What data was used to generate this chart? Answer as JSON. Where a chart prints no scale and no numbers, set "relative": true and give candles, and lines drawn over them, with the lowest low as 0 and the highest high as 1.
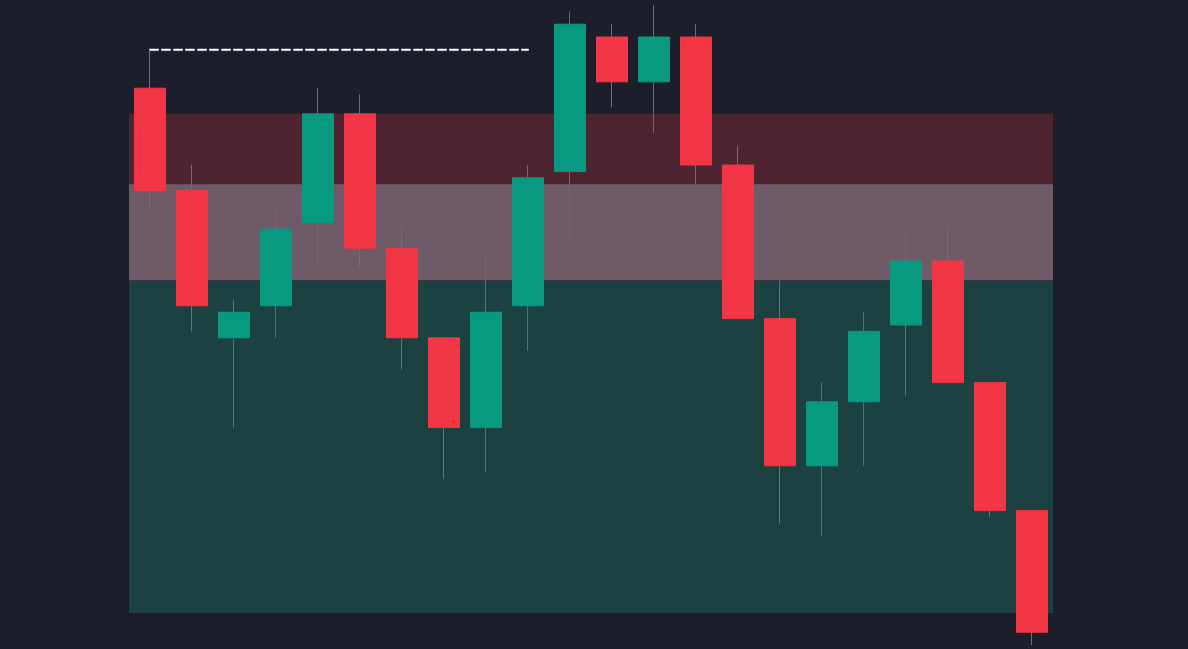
{
  "chart_data": {
    "type": "candlestick",
    "relative": true,
    "tick_labels": false,
    "grid": false,
    "categories": [
      null,
      null,
      null,
      null,
      null,
      null,
      null,
      null,
      null,
      null,
      null,
      null,
      null,
      null,
      null,
      null,
      null,
      null,
      null,
      null,
      null,
      null
    ],
    "ohlc": [
      [
        0.87,
        0.93,
        0.68,
        0.71
      ],
      [
        0.71,
        0.75,
        0.49,
        0.53
      ],
      [
        0.48,
        0.54,
        0.34,
        0.52
      ],
      [
        0.53,
        0.68,
        0.48,
        0.65
      ],
      [
        0.66,
        0.87,
        0.59,
        0.83
      ],
      [
        0.83,
        0.86,
        0.59,
        0.62
      ],
      [
        0.62,
        0.65,
        0.43,
        0.48
      ],
      [
        0.48,
        0.48,
        0.26,
        0.34
      ],
      [
        0.34,
        0.61,
        0.27,
        0.52
      ],
      [
        0.53,
        0.75,
        0.46,
        0.73
      ],
      [
        0.74,
        0.99,
        0.63,
        0.97
      ],
      [
        0.95,
        0.97,
        0.84,
        0.88
      ],
      [
        0.88,
        1,
        0.8,
        0.95
      ],
      [
        0.95,
        0.97,
        0.72,
        0.75
      ],
      [
        0.75,
        0.78,
        0.51,
        0.51
      ],
      [
        0.51,
        0.57,
        0.19,
        0.28
      ],
      [
        0.28,
        0.41,
        0.17,
        0.38
      ],
      [
        0.38,
        0.52,
        0.28,
        0.49
      ],
      [
        0.5,
        0.65,
        0.39,
        0.6
      ],
      [
        0.6,
        0.65,
        0.41,
        0.41
      ],
      [
        0.41,
        0.41,
        0.2,
        0.21
      ],
      [
        0.21,
        0.21,
        0,
        0.02
      ]
    ],
    "colors": [
      "#f23645",
      "#f23645",
      "#089981",
      "#089981",
      "#089981",
      "#f23645",
      "#f23645",
      "#f23645",
      "#089981",
      "#089981",
      "#089981",
      "#f23645",
      "#089981",
      "#f23645",
      "#f23645",
      "#f23645",
      "#089981",
      "#089981",
      "#089981",
      "#f23645",
      "#f23645",
      "#f23645"
    ],
    "series": [
      {
        "type": "line",
        "color": "#ffffff",
        "line_style": "dashed",
        "marker": "none",
        "values": [
          0.93,
          0.93,
          0.93,
          0.93,
          0.93,
          0.93,
          0.93,
          0.93,
          0.93,
          0.93,
          null,
          null,
          null,
          null,
          null,
          null,
          null,
          null,
          null,
          null,
          null,
          null
        ]
      }
    ],
    "bands": [
      {
        "axis": "y",
        "from": 0.05,
        "to": 0.57,
        "color": "#1d6b5e"
      },
      {
        "axis": "y",
        "from": 0.57,
        "to": 0.83,
        "color": "#8a2a38"
      },
      {
        "axis": "y",
        "from": 0.57,
        "to": 0.72,
        "color": "#9aa0ad"
      }
    ]
  }
}
